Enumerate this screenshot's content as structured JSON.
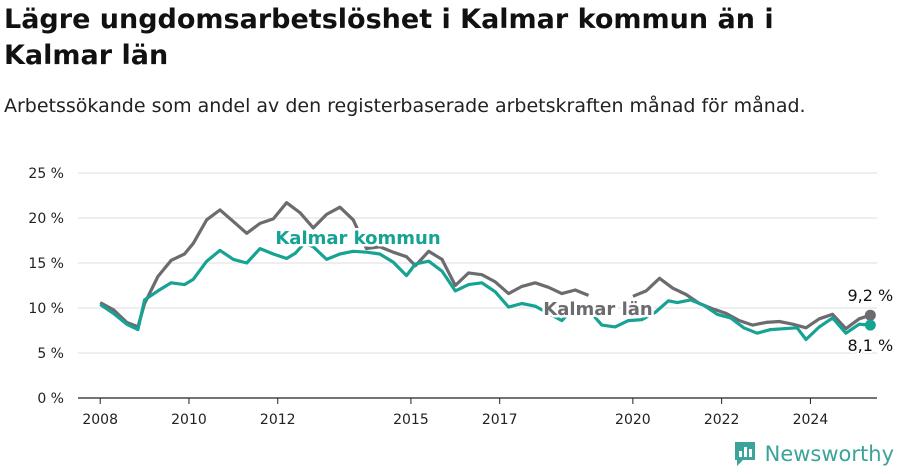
{
  "title": "Lägre ungdomsarbetslöshet i Kalmar kommun än i Kalmar län",
  "subtitle": "Arbetssökande som andel av den registerbaserade arbetskraften månad för månad.",
  "brand": "Newsworthy",
  "colors": {
    "kommun": "#16a394",
    "lan": "#6b6b70",
    "axis": "#222222",
    "grid": "#dddddd"
  },
  "chart_data": {
    "type": "line",
    "x_unit": "year",
    "xlim": [
      2007.5,
      2025.5
    ],
    "ylim": [
      0,
      25
    ],
    "x_ticks": [
      2008,
      2010,
      2012,
      2015,
      2017,
      2020,
      2022,
      2024
    ],
    "x_tick_labels": [
      "2008",
      "2010",
      "2012",
      "2015",
      "2017",
      "2020",
      "2022",
      "2024"
    ],
    "y_ticks": [
      0,
      5,
      10,
      15,
      20,
      25
    ],
    "y_tick_labels": [
      "0 %",
      "5 %",
      "10 %",
      "15 %",
      "20 %",
      "25 %"
    ],
    "series": [
      {
        "name": "Kalmar län",
        "key": "lan",
        "end_label": "9,2 %",
        "points": [
          [
            2008.0,
            10.6
          ],
          [
            2008.3,
            9.8
          ],
          [
            2008.6,
            8.4
          ],
          [
            2008.85,
            7.9
          ],
          [
            2009.0,
            10.5
          ],
          [
            2009.3,
            13.5
          ],
          [
            2009.6,
            15.3
          ],
          [
            2009.9,
            16.0
          ],
          [
            2010.1,
            17.2
          ],
          [
            2010.4,
            19.8
          ],
          [
            2010.7,
            20.9
          ],
          [
            2011.0,
            19.6
          ],
          [
            2011.3,
            18.3
          ],
          [
            2011.6,
            19.4
          ],
          [
            2011.9,
            19.9
          ],
          [
            2012.2,
            21.7
          ],
          [
            2012.5,
            20.6
          ],
          [
            2012.8,
            18.9
          ],
          [
            2013.1,
            20.4
          ],
          [
            2013.4,
            21.2
          ],
          [
            2013.7,
            19.8
          ],
          [
            2014.0,
            16.6
          ],
          [
            2014.3,
            16.8
          ],
          [
            2014.6,
            16.2
          ],
          [
            2014.9,
            15.7
          ],
          [
            2015.1,
            14.7
          ],
          [
            2015.4,
            16.3
          ],
          [
            2015.7,
            15.4
          ],
          [
            2016.0,
            12.5
          ],
          [
            2016.3,
            13.9
          ],
          [
            2016.6,
            13.7
          ],
          [
            2016.9,
            12.9
          ],
          [
            2017.2,
            11.6
          ],
          [
            2017.5,
            12.4
          ],
          [
            2017.8,
            12.8
          ],
          [
            2018.1,
            12.3
          ],
          [
            2018.4,
            11.6
          ],
          [
            2018.7,
            12.0
          ],
          [
            2019.0,
            11.4
          ]
        ],
        "points_b": [
          [
            2020.0,
            11.3
          ],
          [
            2020.3,
            11.9
          ],
          [
            2020.6,
            13.3
          ],
          [
            2020.9,
            12.2
          ],
          [
            2021.2,
            11.5
          ],
          [
            2021.5,
            10.5
          ],
          [
            2021.8,
            9.9
          ],
          [
            2022.1,
            9.4
          ],
          [
            2022.4,
            8.6
          ],
          [
            2022.7,
            8.1
          ],
          [
            2023.0,
            8.4
          ],
          [
            2023.3,
            8.5
          ],
          [
            2023.6,
            8.2
          ],
          [
            2023.9,
            7.8
          ],
          [
            2024.2,
            8.8
          ],
          [
            2024.5,
            9.3
          ],
          [
            2024.8,
            7.7
          ],
          [
            2025.1,
            8.8
          ],
          [
            2025.35,
            9.2
          ]
        ]
      },
      {
        "name": "Kalmar kommun",
        "key": "kommun",
        "end_label": "8,1 %",
        "points": [
          [
            2008.0,
            10.4
          ],
          [
            2008.3,
            9.4
          ],
          [
            2008.6,
            8.2
          ],
          [
            2008.85,
            7.6
          ],
          [
            2009.0,
            10.9
          ],
          [
            2009.3,
            11.9
          ],
          [
            2009.6,
            12.8
          ],
          [
            2009.9,
            12.6
          ],
          [
            2010.1,
            13.2
          ],
          [
            2010.4,
            15.2
          ],
          [
            2010.7,
            16.4
          ],
          [
            2011.0,
            15.4
          ],
          [
            2011.3,
            15.0
          ],
          [
            2011.6,
            16.6
          ],
          [
            2011.9,
            16.0
          ],
          [
            2012.2,
            15.5
          ],
          [
            2012.4,
            16.1
          ],
          [
            2012.6,
            17.2
          ],
          [
            2012.8,
            16.8
          ],
          [
            2013.1,
            15.4
          ],
          [
            2013.4,
            16.0
          ],
          [
            2013.7,
            16.3
          ],
          [
            2014.0,
            16.2
          ],
          [
            2014.3,
            16.0
          ],
          [
            2014.6,
            15.1
          ],
          [
            2014.9,
            13.6
          ],
          [
            2015.1,
            14.9
          ],
          [
            2015.4,
            15.2
          ],
          [
            2015.7,
            14.1
          ],
          [
            2016.0,
            11.9
          ],
          [
            2016.3,
            12.6
          ],
          [
            2016.6,
            12.8
          ],
          [
            2016.9,
            11.8
          ],
          [
            2017.2,
            10.1
          ],
          [
            2017.5,
            10.5
          ],
          [
            2017.8,
            10.2
          ],
          [
            2018.1,
            9.4
          ],
          [
            2018.4,
            8.6
          ],
          [
            2018.7,
            10.2
          ],
          [
            2019.0,
            9.8
          ],
          [
            2019.3,
            8.1
          ],
          [
            2019.6,
            7.9
          ],
          [
            2019.9,
            8.6
          ],
          [
            2020.2,
            8.7
          ],
          [
            2020.5,
            9.5
          ],
          [
            2020.8,
            10.8
          ],
          [
            2021.0,
            10.6
          ],
          [
            2021.3,
            10.9
          ],
          [
            2021.6,
            10.3
          ],
          [
            2021.9,
            9.3
          ],
          [
            2022.2,
            8.9
          ],
          [
            2022.5,
            7.8
          ],
          [
            2022.8,
            7.2
          ],
          [
            2023.1,
            7.6
          ],
          [
            2023.4,
            7.7
          ],
          [
            2023.7,
            7.8
          ],
          [
            2023.9,
            6.5
          ],
          [
            2024.2,
            7.9
          ],
          [
            2024.5,
            8.9
          ],
          [
            2024.8,
            7.2
          ],
          [
            2025.1,
            8.2
          ],
          [
            2025.35,
            8.1
          ]
        ]
      }
    ]
  }
}
